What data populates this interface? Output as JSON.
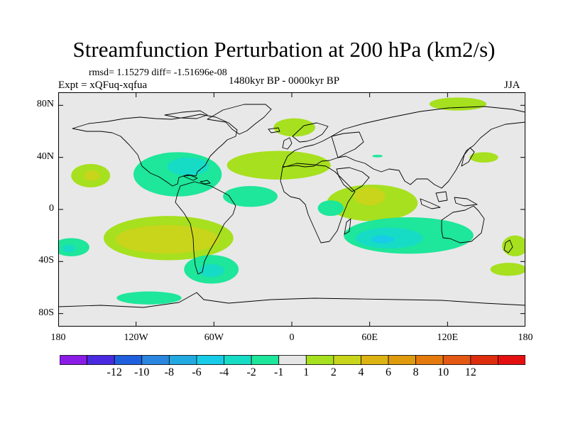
{
  "title": "Streamfunction Perturbation at 200 hPa (km2/s)",
  "stats": "rmsd= 1.15279 diff= -1.51696e-08",
  "experiment": "Expt = xQFuq-xqfua",
  "period": "1480kyr BP - 0000kyr BP",
  "season": "JJA",
  "map": {
    "projection": "cylindrical-equidistant",
    "lon_range": [
      -180,
      180
    ],
    "lat_range": [
      -90,
      90
    ],
    "ocean_color": "#e8e8e8",
    "coastline_color": "#000000",
    "y_ticks": [
      {
        "lat": 80,
        "label": "80N"
      },
      {
        "lat": 40,
        "label": "40N"
      },
      {
        "lat": 0,
        "label": "0"
      },
      {
        "lat": -40,
        "label": "40S"
      },
      {
        "lat": -80,
        "label": "80S"
      }
    ],
    "x_ticks": [
      {
        "lon": -180,
        "label": "180"
      },
      {
        "lon": -120,
        "label": "120W"
      },
      {
        "lon": -60,
        "label": "60W"
      },
      {
        "lon": 0,
        "label": "0"
      },
      {
        "lon": 60,
        "label": "60E"
      },
      {
        "lon": 120,
        "label": "120E"
      },
      {
        "lon": 180,
        "label": "180"
      }
    ],
    "anomaly_regions": [
      {
        "level": 2,
        "lon": -95,
        "lat": -22,
        "rlon": 50,
        "rlat": 17
      },
      {
        "level": 4,
        "lon": -96,
        "lat": -23,
        "rlon": 40,
        "rlat": 11
      },
      {
        "level": 2,
        "lon": -155,
        "lat": 26,
        "rlon": 15,
        "rlat": 9
      },
      {
        "level": 4,
        "lon": -154,
        "lat": 26,
        "rlon": 6,
        "rlat": 4
      },
      {
        "level": -1,
        "lon": -88,
        "lat": 27,
        "rlon": 34,
        "rlat": 17
      },
      {
        "level": -2,
        "lon": -80,
        "lat": 33,
        "rlon": 16,
        "rlat": 7
      },
      {
        "level": -1,
        "lon": -32,
        "lat": 10,
        "rlon": 21,
        "rlat": 8
      },
      {
        "level": -1,
        "lon": -62,
        "lat": -46,
        "rlon": 21,
        "rlat": 11
      },
      {
        "level": -2,
        "lon": -62,
        "lat": -47,
        "rlon": 10,
        "rlat": 5
      },
      {
        "level": -1,
        "lon": -110,
        "lat": -68,
        "rlon": 25,
        "rlat": 5
      },
      {
        "level": -1,
        "lon": -170,
        "lat": -29,
        "rlon": 14,
        "rlat": 7
      },
      {
        "level": -2,
        "lon": -172,
        "lat": -30,
        "rlon": 5,
        "rlat": 3
      },
      {
        "level": 2,
        "lon": -10,
        "lat": 34,
        "rlon": 40,
        "rlat": 11
      },
      {
        "level": 2,
        "lon": 2,
        "lat": 63,
        "rlon": 16,
        "rlat": 7
      },
      {
        "level": 2,
        "lon": 128,
        "lat": 81,
        "rlon": 22,
        "rlat": 5
      },
      {
        "level": 2,
        "lon": 148,
        "lat": 40,
        "rlon": 11,
        "rlat": 4
      },
      {
        "level": 2,
        "lon": 62,
        "lat": 5,
        "rlon": 35,
        "rlat": 14
      },
      {
        "level": 4,
        "lon": 60,
        "lat": 10,
        "rlon": 12,
        "rlat": 7
      },
      {
        "level": -1,
        "lon": 30,
        "lat": 1,
        "rlon": 10,
        "rlat": 6
      },
      {
        "level": -1,
        "lon": 90,
        "lat": -20,
        "rlon": 50,
        "rlat": 14
      },
      {
        "level": -2,
        "lon": 75,
        "lat": -22,
        "rlon": 26,
        "rlat": 8
      },
      {
        "level": -4,
        "lon": 70,
        "lat": -23,
        "rlon": 9,
        "rlat": 3
      },
      {
        "level": -1,
        "lon": 120,
        "lat": -24,
        "rlon": 10,
        "rlat": 6
      },
      {
        "level": 2,
        "lon": 172,
        "lat": -28,
        "rlon": 10,
        "rlat": 8
      },
      {
        "level": 2,
        "lon": 167,
        "lat": -46,
        "rlon": 14,
        "rlat": 5
      },
      {
        "level": -1,
        "lon": 66,
        "lat": 41,
        "rlon": 4,
        "rlat": 1
      }
    ]
  },
  "colorbar": {
    "colors": [
      "#8b1be6",
      "#4a2ae0",
      "#1f5fde",
      "#2a86df",
      "#22a9e2",
      "#16cce6",
      "#17dcc5",
      "#1ee69a",
      "#e6e6e6",
      "#a6e01f",
      "#c8d51b",
      "#dcb312",
      "#df9a0d",
      "#e57a0c",
      "#e35812",
      "#dd2d0e",
      "#e41010"
    ],
    "labels": [
      "-12",
      "-10",
      "-8",
      "-6",
      "-4",
      "-2",
      "-1",
      "1",
      "2",
      "4",
      "6",
      "8",
      "10",
      "12"
    ]
  }
}
